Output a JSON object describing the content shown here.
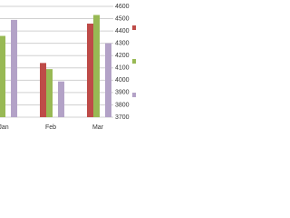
{
  "chart_data": {
    "type": "bar",
    "categories": [
      "Jan",
      "Feb",
      "Mar"
    ],
    "series": [
      {
        "color": "#be4b48",
        "values": [
          null,
          4140,
          4460
        ]
      },
      {
        "color": "#98b954",
        "values": [
          4360,
          4090,
          4530
        ]
      },
      {
        "color": "#b3a2c7",
        "values": [
          4490,
          3990,
          4300
        ]
      }
    ],
    "ylim": [
      3700,
      4600
    ],
    "yticks": [
      3700,
      3800,
      3900,
      4000,
      4100,
      4200,
      4300,
      4400,
      4500,
      4600
    ],
    "grid": true,
    "legend": "right"
  }
}
